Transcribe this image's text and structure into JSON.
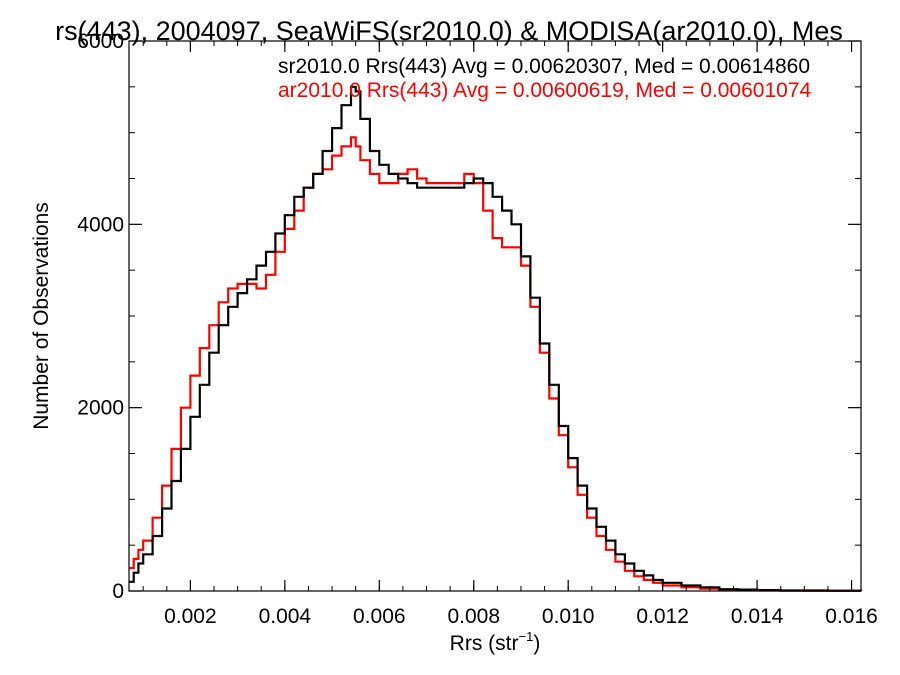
{
  "chart_data": {
    "type": "line",
    "title": "rs(443), 2004097, SeaWiFS(sr2010.0) & MODISA(ar2010.0), Mes",
    "xlabel": "Rrs (str",
    "xlabel_sup": "−1",
    "xlabel_close": ")",
    "ylabel": "Number of Observations",
    "xlim": [
      0.0007,
      0.0162
    ],
    "ylim": [
      0,
      6000
    ],
    "xticks": [
      0.002,
      0.004,
      0.006,
      0.008,
      0.01,
      0.012,
      0.014,
      0.016
    ],
    "xtick_labels": [
      "0.002",
      "0.004",
      "0.006",
      "0.008",
      "0.010",
      "0.012",
      "0.014",
      "0.016"
    ],
    "yticks": [
      0,
      2000,
      4000,
      6000
    ],
    "ytick_labels": [
      "0",
      "2000",
      "4000",
      "6000"
    ],
    "grid": false,
    "legend_position": "top-right",
    "series": [
      {
        "name": "sr2010.0 Rrs(443) Avg = 0.00620307, Med = 0.00614860",
        "color": "#000000",
        "x": [
          0.0007,
          0.0008,
          0.0009,
          0.001,
          0.0012,
          0.0014,
          0.0016,
          0.0018,
          0.002,
          0.0022,
          0.0024,
          0.0026,
          0.0028,
          0.003,
          0.0032,
          0.0034,
          0.0036,
          0.0038,
          0.004,
          0.0042,
          0.0044,
          0.0046,
          0.0048,
          0.005,
          0.0052,
          0.0054,
          0.0055,
          0.0056,
          0.0058,
          0.006,
          0.0062,
          0.0064,
          0.0066,
          0.0068,
          0.007,
          0.0072,
          0.0074,
          0.0076,
          0.0078,
          0.008,
          0.0082,
          0.0084,
          0.0086,
          0.0088,
          0.009,
          0.0092,
          0.0094,
          0.0096,
          0.0098,
          0.01,
          0.0102,
          0.0104,
          0.0106,
          0.0108,
          0.011,
          0.0112,
          0.0114,
          0.0116,
          0.0118,
          0.012,
          0.0124,
          0.0128,
          0.0132,
          0.0136,
          0.014,
          0.0145,
          0.015,
          0.0155,
          0.0162
        ],
        "y": [
          100,
          200,
          300,
          400,
          600,
          900,
          1200,
          1550,
          1900,
          2250,
          2600,
          2900,
          3100,
          3250,
          3400,
          3550,
          3700,
          3900,
          4100,
          4300,
          4400,
          4550,
          4800,
          5050,
          5300,
          5500,
          5450,
          5150,
          4800,
          4650,
          4550,
          4500,
          4450,
          4400,
          4400,
          4400,
          4400,
          4400,
          4450,
          4500,
          4450,
          4300,
          4150,
          4000,
          3650,
          3200,
          2700,
          2250,
          1800,
          1450,
          1150,
          900,
          700,
          550,
          400,
          300,
          220,
          170,
          120,
          90,
          60,
          40,
          20,
          15,
          10,
          5,
          5,
          3,
          2
        ]
      },
      {
        "name": "ar2010.0 Rrs(443) Avg = 0.00600619, Med = 0.00601074",
        "color": "#ff0000",
        "x": [
          0.0007,
          0.0008,
          0.0009,
          0.001,
          0.0012,
          0.0014,
          0.0016,
          0.0018,
          0.002,
          0.0022,
          0.0024,
          0.0026,
          0.0028,
          0.003,
          0.0032,
          0.0034,
          0.0036,
          0.0038,
          0.004,
          0.0042,
          0.0044,
          0.0046,
          0.0048,
          0.005,
          0.0052,
          0.0054,
          0.0055,
          0.0056,
          0.0058,
          0.006,
          0.0062,
          0.0064,
          0.0066,
          0.0068,
          0.007,
          0.0072,
          0.0074,
          0.0076,
          0.0078,
          0.008,
          0.0082,
          0.0084,
          0.0086,
          0.0088,
          0.009,
          0.0092,
          0.0094,
          0.0096,
          0.0098,
          0.01,
          0.0102,
          0.0104,
          0.0106,
          0.0108,
          0.011,
          0.0112,
          0.0114,
          0.0116,
          0.0118,
          0.012,
          0.0124,
          0.0128,
          0.0132,
          0.0136,
          0.014,
          0.0145,
          0.015,
          0.0155,
          0.0162
        ],
        "y": [
          250,
          350,
          450,
          550,
          800,
          1150,
          1550,
          2000,
          2350,
          2650,
          2900,
          3150,
          3300,
          3350,
          3350,
          3300,
          3450,
          3700,
          3950,
          4150,
          4400,
          4550,
          4600,
          4750,
          4850,
          4950,
          4850,
          4700,
          4550,
          4450,
          4450,
          4550,
          4600,
          4500,
          4450,
          4450,
          4450,
          4450,
          4550,
          4450,
          4150,
          3850,
          3750,
          3750,
          3550,
          3100,
          2600,
          2100,
          1700,
          1350,
          1050,
          800,
          600,
          450,
          320,
          220,
          160,
          120,
          90,
          60,
          40,
          25,
          15,
          10,
          5,
          3,
          2,
          2,
          1
        ]
      }
    ]
  }
}
